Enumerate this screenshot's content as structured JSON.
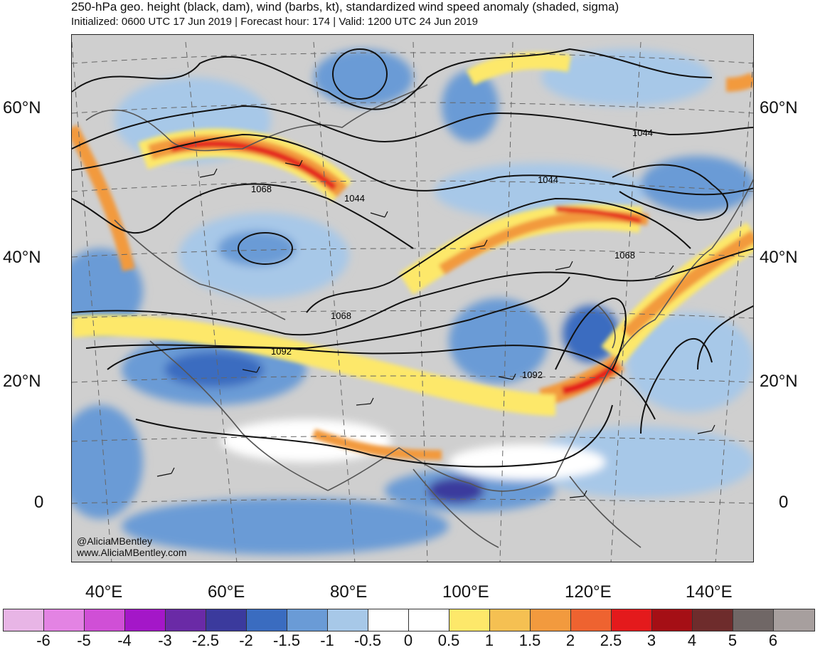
{
  "header": {
    "title": "250-hPa geo. height (black, dam), wind (barbs, kt), standardized wind speed anomaly (shaded, sigma)",
    "subtitle": "Initialized: 0600 UTC 17 Jun 2019 | Forecast hour: 174 | Valid: 1200 UTC 24 Jun 2019"
  },
  "map": {
    "lat_labels": [
      "60°N",
      "40°N",
      "20°N",
      "0"
    ],
    "lon_labels": [
      "40°E",
      "60°E",
      "80°E",
      "100°E",
      "120°E",
      "140°E"
    ],
    "contour_labels": [
      "1044",
      "1044",
      "1044",
      "1068",
      "1068",
      "1068",
      "1092",
      "1092"
    ],
    "credit_handle": "@AliciaMBentley",
    "credit_url": "www.AliciaMBentley.com"
  },
  "colorbar": {
    "tick_labels": [
      "-6",
      "-5",
      "-4",
      "-3",
      "-2.5",
      "-2",
      "-1.5",
      "-1",
      "-0.5",
      "0",
      "0.5",
      "1",
      "1.5",
      "2",
      "2.5",
      "3",
      "4",
      "5",
      "6"
    ],
    "colors": [
      "#e8b5e6",
      "#e383e3",
      "#d04fd6",
      "#a417c8",
      "#6a2aa6",
      "#3b3a9d",
      "#3a6cc0",
      "#6a9bd6",
      "#a7c8e8",
      "#ffffff",
      "#ffffff",
      "#fde86a",
      "#f5c052",
      "#f29a3e",
      "#ee6330",
      "#e41a1c",
      "#a50f15",
      "#6e2c2c",
      "#706766",
      "#a79f9e"
    ]
  }
}
